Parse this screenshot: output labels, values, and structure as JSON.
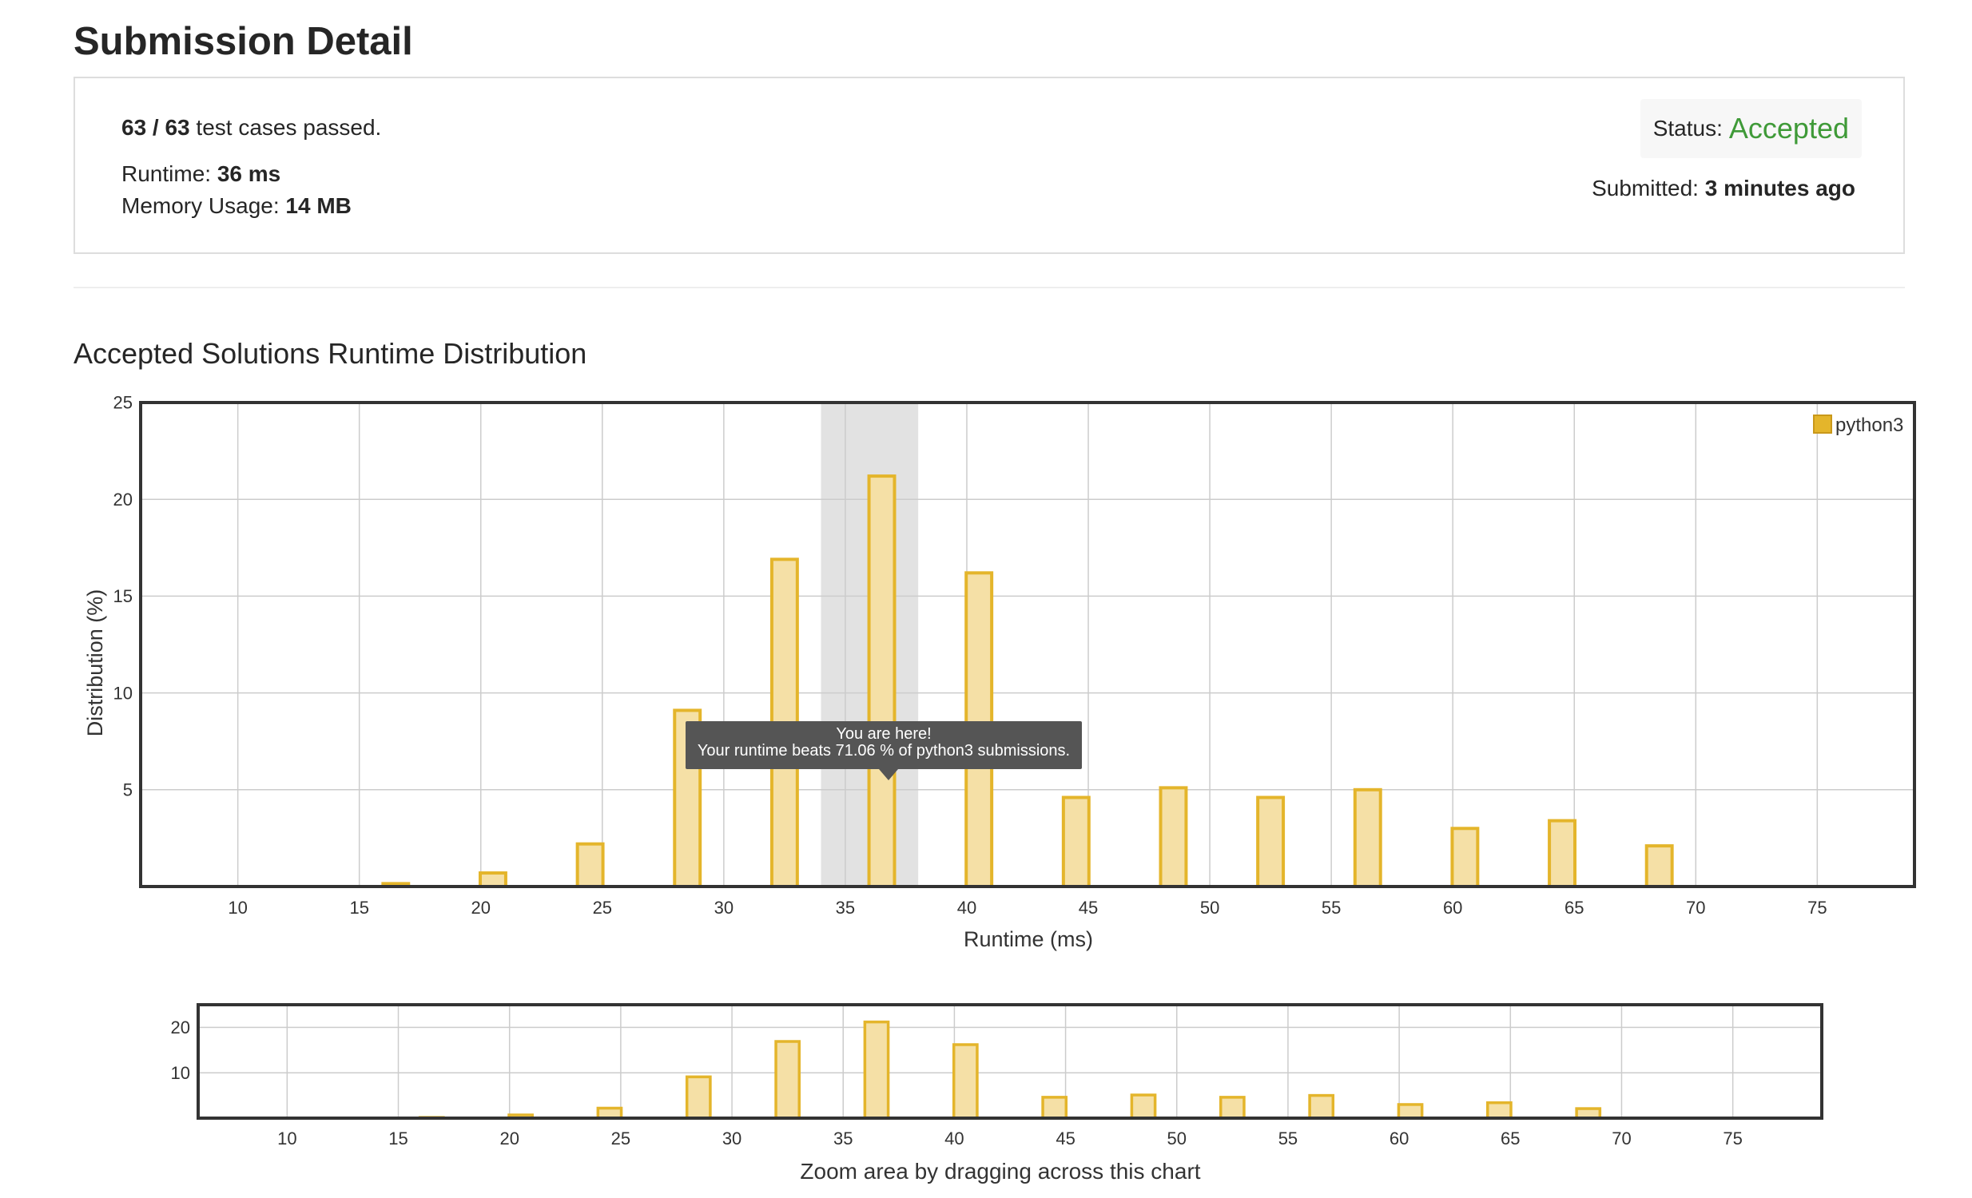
{
  "page": {
    "title": "Submission Detail"
  },
  "summary": {
    "tests_passed": "63 / 63",
    "tests_suffix": " test cases passed.",
    "runtime_label": "Runtime: ",
    "runtime_value": "36 ms",
    "memory_label": "Memory Usage: ",
    "memory_value": "14 MB",
    "status_label": "Status:",
    "status_value": "Accepted",
    "submitted_label": "Submitted: ",
    "submitted_value": "3 minutes ago"
  },
  "colors": {
    "status_accepted": "#3f9a38",
    "bar_fill": "#f5e0a6",
    "bar_stroke": "#e4b52b",
    "highlight_band": "#e2e2e2",
    "tooltip_bg": "#555555"
  },
  "distribution": {
    "heading": "Accepted Solutions Runtime Distribution",
    "tooltip_line1": "You are here!",
    "tooltip_line2": "Your runtime beats 71.06 % of python3 submissions.",
    "zoom_hint": "Zoom area by dragging across this chart",
    "highlight_range": [
      34,
      38
    ]
  },
  "chart_data": [
    {
      "type": "bar",
      "xlabel": "Runtime (ms)",
      "ylabel": "Distribution (%)",
      "xlim": [
        6,
        79
      ],
      "ylim": [
        0,
        25
      ],
      "xticks": [
        10,
        15,
        20,
        25,
        30,
        35,
        40,
        45,
        50,
        55,
        60,
        65,
        70,
        75
      ],
      "yticks": [
        5,
        10,
        15,
        20,
        25
      ],
      "grid": true,
      "legend": "top-right",
      "series": [
        {
          "name": "python3",
          "x": [
            16.5,
            20.5,
            24.5,
            28.5,
            32.5,
            36.5,
            40.5,
            44.5,
            48.5,
            52.5,
            56.5,
            60.5,
            64.5,
            68.5
          ],
          "values": [
            0.15,
            0.7,
            2.2,
            9.1,
            16.9,
            21.2,
            16.2,
            4.6,
            5.1,
            4.6,
            5.0,
            3.0,
            3.4,
            2.1
          ]
        }
      ]
    },
    {
      "type": "bar",
      "xlim": [
        6,
        79
      ],
      "ylim": [
        0,
        25
      ],
      "xticks": [
        10,
        15,
        20,
        25,
        30,
        35,
        40,
        45,
        50,
        55,
        60,
        65,
        70,
        75
      ],
      "yticks": [
        10,
        20
      ],
      "grid": true,
      "series": [
        {
          "x": [
            16.5,
            20.5,
            24.5,
            28.5,
            32.5,
            36.5,
            40.5,
            44.5,
            48.5,
            52.5,
            56.5,
            60.5,
            64.5,
            68.5
          ],
          "values": [
            0.15,
            0.7,
            2.2,
            9.1,
            16.9,
            21.2,
            16.2,
            4.6,
            5.1,
            4.6,
            5.0,
            3.0,
            3.4,
            2.1
          ]
        }
      ]
    }
  ]
}
